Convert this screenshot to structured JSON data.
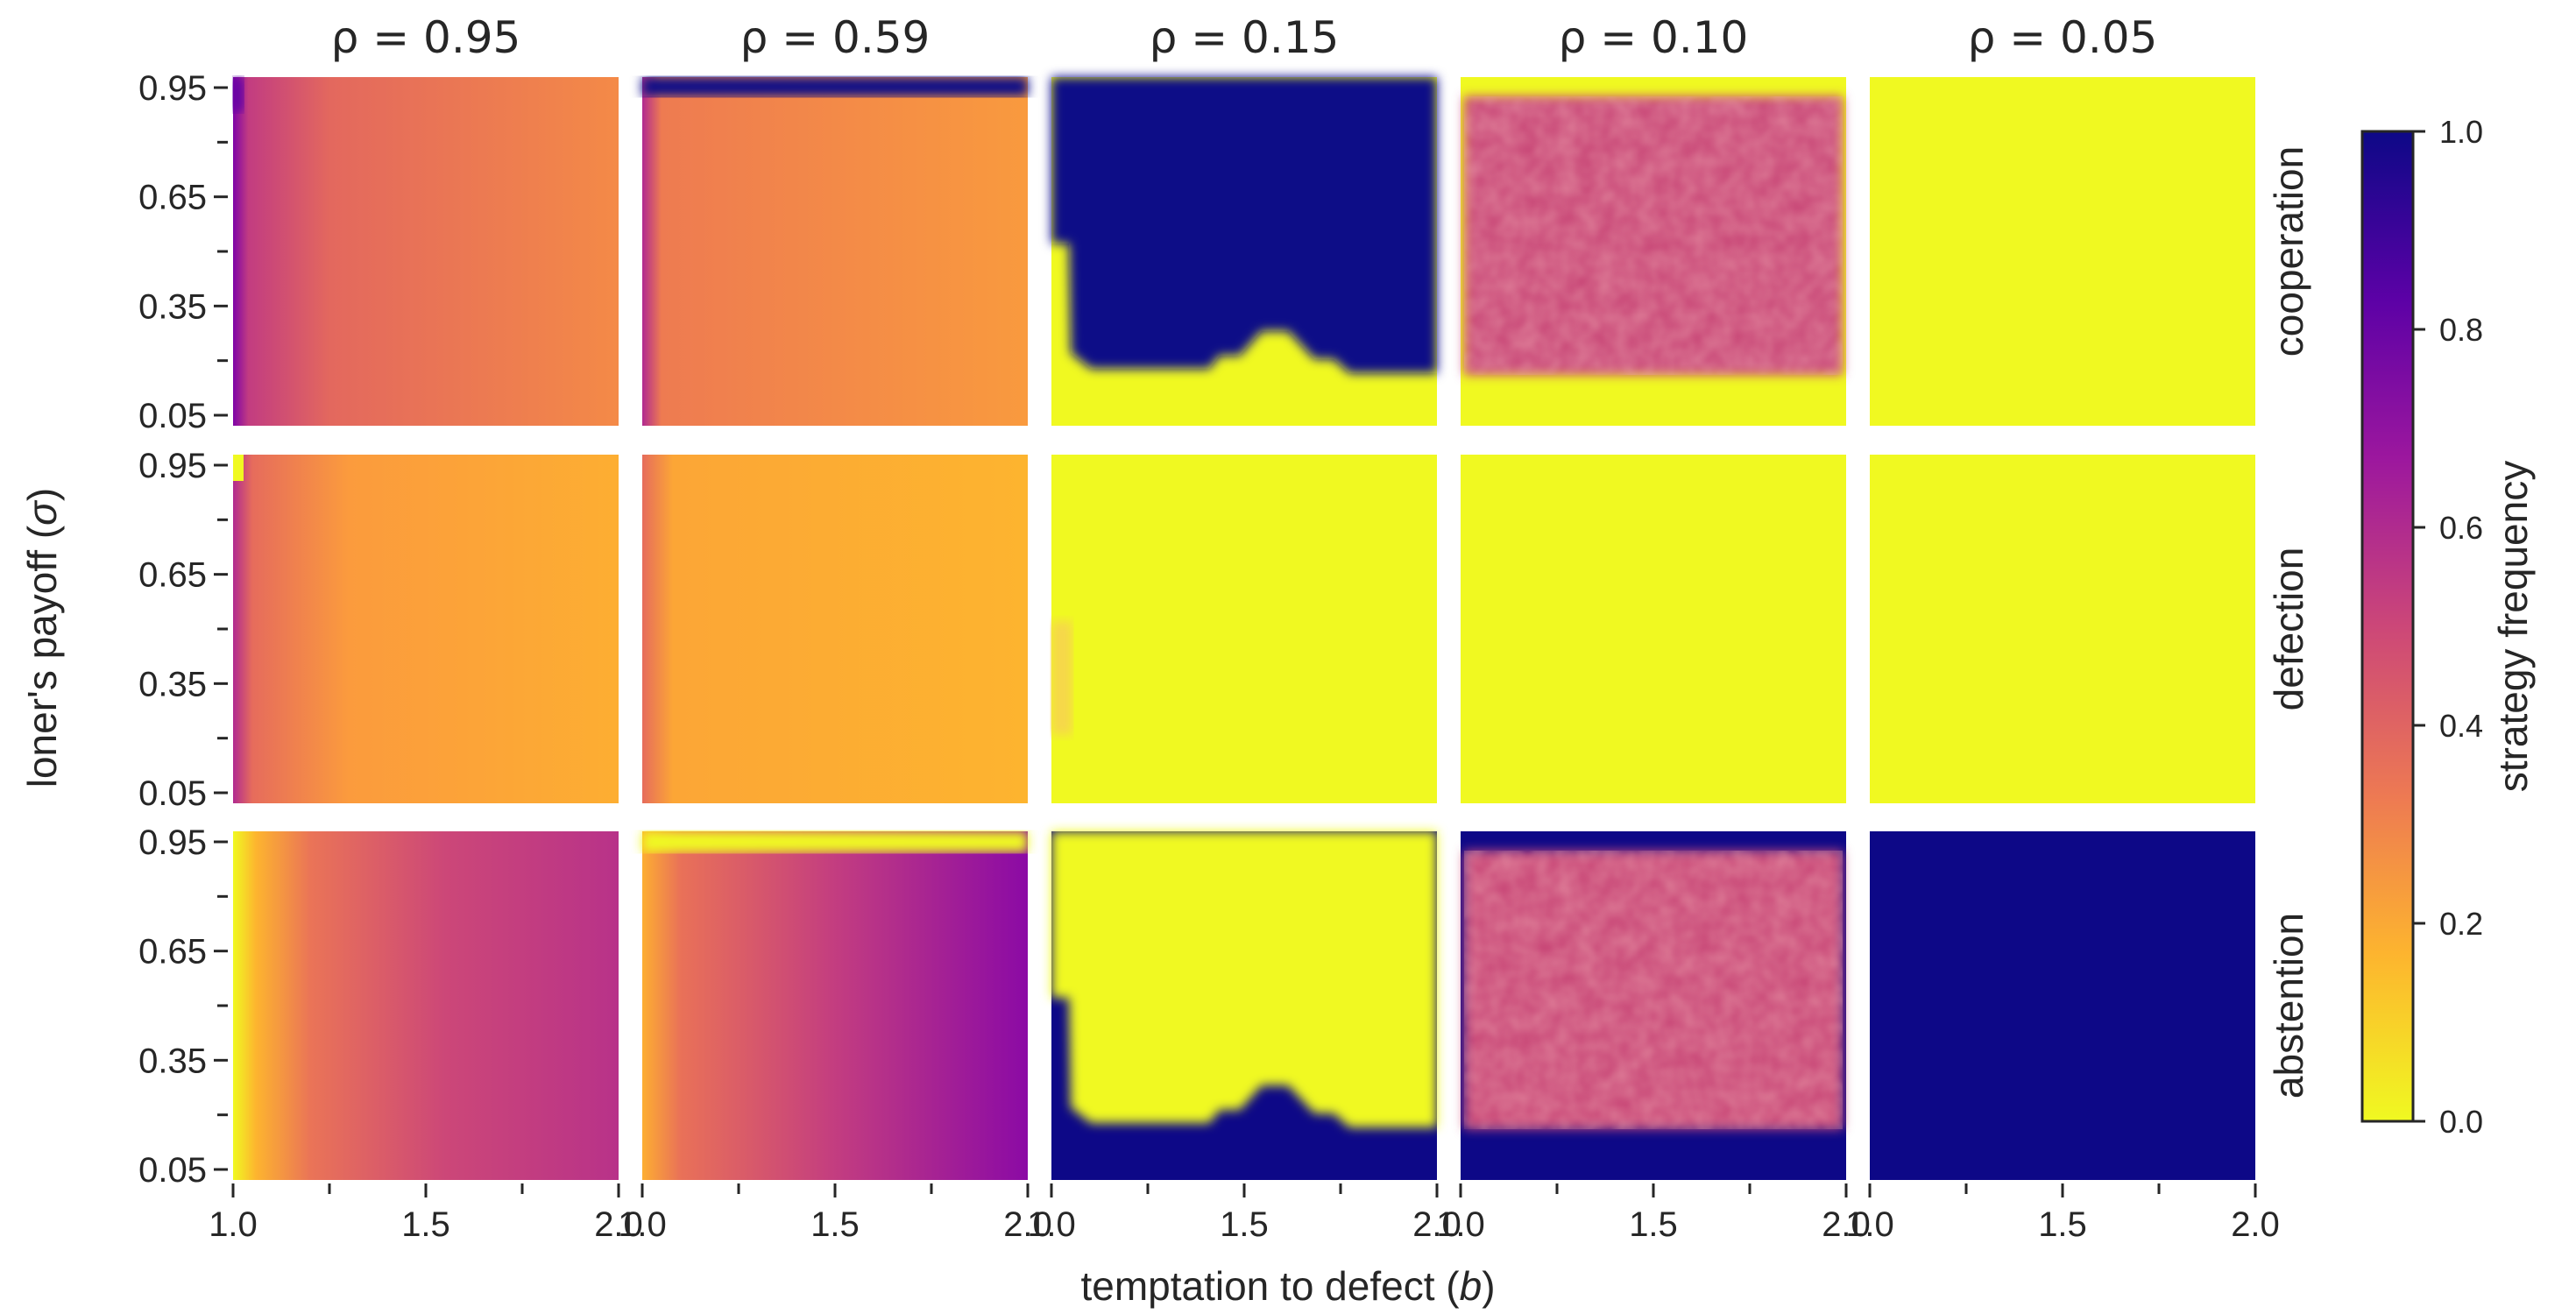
{
  "chart_data": {
    "type": "heatmap",
    "xlabel": "temptation to defect",
    "xlabel_symbol": "b",
    "ylabel": "loner's payoff",
    "ylabel_symbol": "σ",
    "x_range": [
      1.0,
      2.0
    ],
    "y_range": [
      0.05,
      0.95
    ],
    "x_ticks": [
      "1.0",
      "1.5",
      "2.0"
    ],
    "y_ticks": [
      "0.95",
      "0.65",
      "0.35",
      "0.05"
    ],
    "columns": [
      {
        "label": "ρ = 0.95",
        "rho": 0.95
      },
      {
        "label": "ρ = 0.59",
        "rho": 0.59
      },
      {
        "label": "ρ = 0.15",
        "rho": 0.15
      },
      {
        "label": "ρ = 0.10",
        "rho": 0.1
      },
      {
        "label": "ρ = 0.05",
        "rho": 0.05
      }
    ],
    "rows": [
      {
        "label": "cooperation"
      },
      {
        "label": "defection"
      },
      {
        "label": "abstention"
      }
    ],
    "colorbar": {
      "label": "strategy frequency",
      "range": [
        0.0,
        1.0
      ],
      "ticks": [
        "1.0",
        "0.8",
        "0.6",
        "0.4",
        "0.2",
        "0.0"
      ],
      "colormap": "plasma_r",
      "stops": [
        "#f0f921",
        "#fdb42f",
        "#ed7953",
        "#cc4778",
        "#9c179e",
        "#5c01a6",
        "#0d0887"
      ]
    },
    "panel_descriptions": [
      [
        "cooperation ≈0.25–0.4 throughout, higher near b=1",
        "cooperation ≈0.25, ~1.0 band at σ=0.95",
        "cooperation 1.0 above a stepped boundary (~σ 0.15–0.3), 0 below",
        "cooperation ≈0.5 with noise for σ 0.2–0.9, 0 elsewhere",
        "cooperation 0 everywhere"
      ],
      [
        "defection ≈0.2–0.3, higher near b=1",
        "defection ≈0.2",
        "defection ≈0 everywhere",
        "defection 0 everywhere",
        "defection 0 everywhere"
      ],
      [
        "abstention ≈0 at b=1 rising to ≈0.5–0.6 at b=2",
        "abstention ≈0 at σ=0.95, rising to ≈0.8 at b=2",
        "abstention 1.0 below stepped boundary, 0 above",
        "abstention ≈0.5 with noise for σ 0.2–0.9, 1.0 elsewhere",
        "abstention 1.0 everywhere"
      ]
    ]
  }
}
